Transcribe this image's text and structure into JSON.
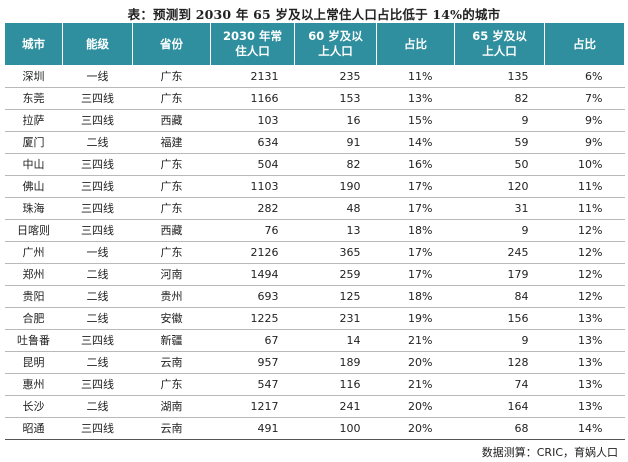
{
  "title": "表：预测到 2030 年 65 岁及以上常住人口占比低于 14%的城市",
  "headers": [
    "城市",
    "能级",
    "省份",
    "2030 年常\n住人口",
    "60 岁及以\n上人口",
    "占比",
    "65 岁及以\n上人口",
    "占比"
  ],
  "rows": [
    [
      "深圳",
      "一线",
      "广东",
      "2131",
      "235",
      "11%",
      "135",
      "6%"
    ],
    [
      "东莞",
      "三四线",
      "广东",
      "1166",
      "153",
      "13%",
      "82",
      "7%"
    ],
    [
      "拉萨",
      "三四线",
      "西藏",
      "103",
      "16",
      "15%",
      "9",
      "9%"
    ],
    [
      "厦门",
      "二线",
      "福建",
      "634",
      "91",
      "14%",
      "59",
      "9%"
    ],
    [
      "中山",
      "三四线",
      "广东",
      "504",
      "82",
      "16%",
      "50",
      "10%"
    ],
    [
      "佛山",
      "三四线",
      "广东",
      "1103",
      "190",
      "17%",
      "120",
      "11%"
    ],
    [
      "珠海",
      "三四线",
      "广东",
      "282",
      "48",
      "17%",
      "31",
      "11%"
    ],
    [
      "日喀则",
      "三四线",
      "西藏",
      "76",
      "13",
      "18%",
      "9",
      "12%"
    ],
    [
      "广州",
      "一线",
      "广东",
      "2126",
      "365",
      "17%",
      "245",
      "12%"
    ],
    [
      "郑州",
      "二线",
      "河南",
      "1494",
      "259",
      "17%",
      "179",
      "12%"
    ],
    [
      "贵阳",
      "二线",
      "贵州",
      "693",
      "125",
      "18%",
      "84",
      "12%"
    ],
    [
      "合肥",
      "二线",
      "安徽",
      "1225",
      "231",
      "19%",
      "156",
      "13%"
    ],
    [
      "吐鲁番",
      "三四线",
      "新疆",
      "67",
      "14",
      "21%",
      "9",
      "13%"
    ],
    [
      "昆明",
      "二线",
      "云南",
      "957",
      "189",
      "20%",
      "128",
      "13%"
    ],
    [
      "惠州",
      "三四线",
      "广东",
      "547",
      "116",
      "21%",
      "74",
      "13%"
    ],
    [
      "长沙",
      "二线",
      "湖南",
      "1217",
      "241",
      "20%",
      "164",
      "13%"
    ],
    [
      "昭通",
      "三四线",
      "云南",
      "491",
      "100",
      "20%",
      "68",
      "14%"
    ]
  ],
  "source": "数据测算：CRIC，育娲人口",
  "colors": {
    "header_bg": "#2f8f9f",
    "header_text": "#ffffff"
  }
}
